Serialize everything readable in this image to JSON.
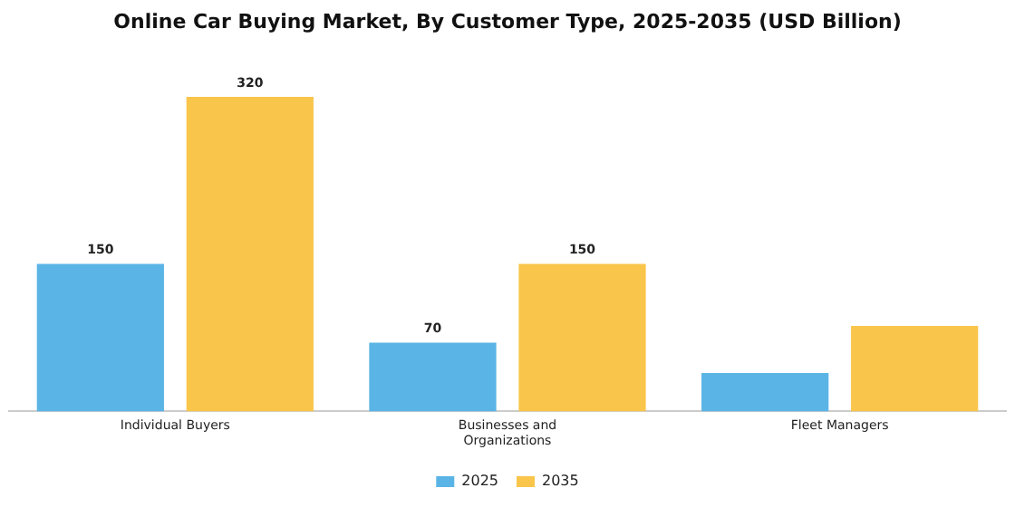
{
  "chart_data": {
    "type": "bar",
    "title": "Online Car Buying Market, By Customer Type, 2025-2035 (USD Billion)",
    "categories": [
      "Individual Buyers",
      "Businesses and\nOrganizations",
      "Fleet Managers"
    ],
    "series": [
      {
        "name": "2025",
        "color": "#5ab4e6",
        "values": [
          150,
          70,
          39
        ],
        "value_labels": [
          "150",
          "70",
          null
        ]
      },
      {
        "name": "2035",
        "color": "#f9c54b",
        "values": [
          320,
          150,
          87
        ],
        "value_labels": [
          "320",
          "150",
          null
        ]
      }
    ],
    "legend": "bottom",
    "grid": false
  }
}
